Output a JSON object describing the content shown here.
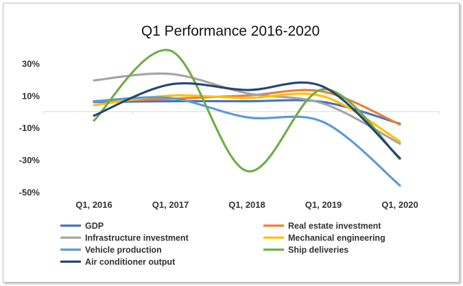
{
  "chart_data": {
    "type": "line",
    "title": "Q1 Performance 2016-2020",
    "xlabel": "",
    "ylabel": "",
    "categories": [
      "Q1, 2016",
      "Q1, 2017",
      "Q1, 2018",
      "Q1, 2019",
      "Q1, 2020"
    ],
    "y_ticks": [
      "30%",
      "10%",
      "-10%",
      "-30%",
      "-50%"
    ],
    "y_tick_values": [
      30,
      10,
      -10,
      -30,
      -50
    ],
    "ylim": [
      -50,
      40
    ],
    "grid": false,
    "smooth": true,
    "legend_position": "bottom",
    "series": [
      {
        "name": "GDP",
        "color": "#4472C4",
        "values": [
          6,
          6.5,
          6.5,
          6,
          -7.5
        ]
      },
      {
        "name": "Real estate investment",
        "color": "#ED7D31",
        "values": [
          6.5,
          8,
          10,
          12.5,
          -8
        ]
      },
      {
        "name": "Infrastructure investment",
        "color": "#A5A5A5",
        "values": [
          19.5,
          23.5,
          11.5,
          5,
          -20
        ]
      },
      {
        "name": "Mechanical engineering",
        "color": "#FFC000",
        "values": [
          4,
          10,
          8.5,
          9.5,
          -18.5
        ]
      },
      {
        "name": "Vehicle production",
        "color": "#5B9BD5",
        "values": [
          6.5,
          8.5,
          -3.5,
          -6.5,
          -46
        ]
      },
      {
        "name": "Ship deliveries",
        "color": "#70AD47",
        "values": [
          -5.5,
          38,
          -37,
          14,
          -29.5
        ]
      },
      {
        "name": "Air conditioner output",
        "color": "#264478",
        "values": [
          -2.5,
          17,
          13.5,
          15.5,
          -29
        ]
      }
    ]
  }
}
